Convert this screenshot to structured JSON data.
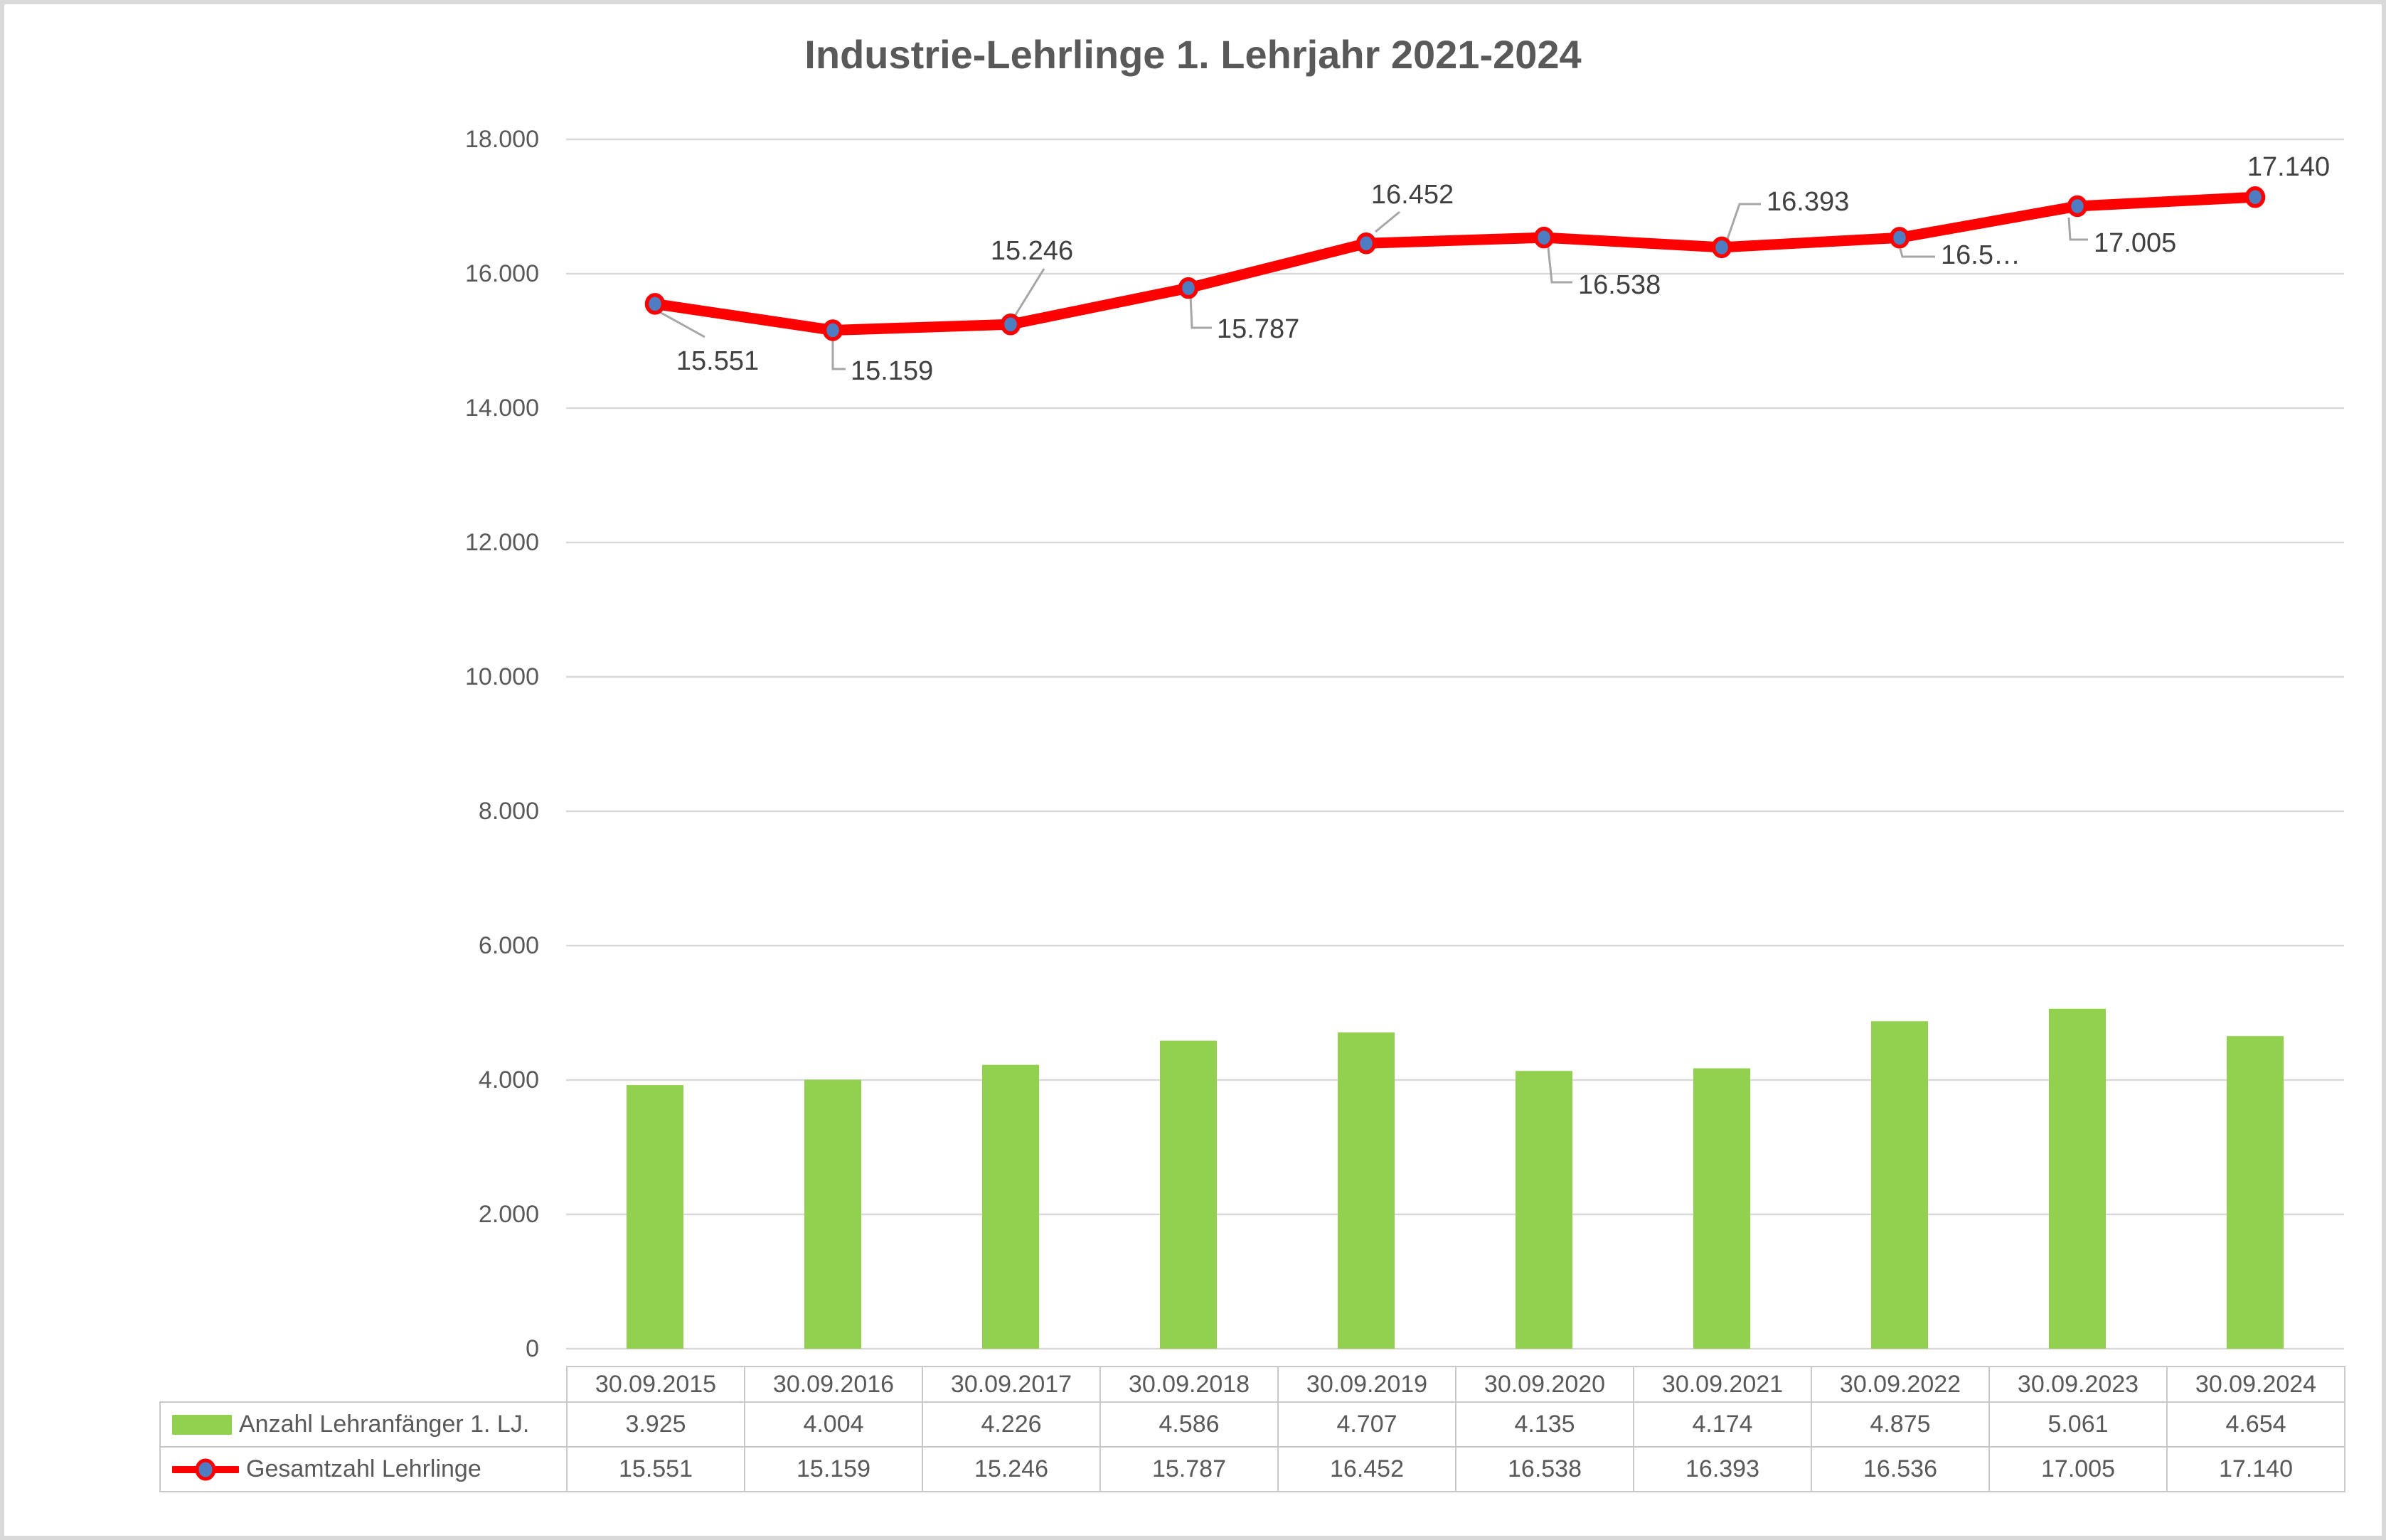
{
  "window": {
    "background": "#FFFFFF",
    "border_color": "#D9D9D9"
  },
  "title": "Industrie-Lehrlinge 1. Lehrjahr 2021-2024",
  "title_color": "#595959",
  "chart_data": {
    "type": "combo-bar-line",
    "categories": [
      "30.09.2015",
      "30.09.2016",
      "30.09.2017",
      "30.09.2018",
      "30.09.2019",
      "30.09.2020",
      "30.09.2021",
      "30.09.2022",
      "30.09.2023",
      "30.09.2024"
    ],
    "series": [
      {
        "name": "Anzahl Lehranfänger 1. LJ.",
        "chart_type": "bar",
        "color": "#92D050",
        "values": [
          3925,
          4004,
          4226,
          4586,
          4707,
          4135,
          4174,
          4875,
          5061,
          4654
        ],
        "values_formatted": [
          "3.925",
          "4.004",
          "4.226",
          "4.586",
          "4.707",
          "4.135",
          "4.174",
          "4.875",
          "5.061",
          "4.654"
        ]
      },
      {
        "name": "Gesamtzahl Lehrlinge",
        "chart_type": "line",
        "color": "#FF0000",
        "marker_fill": "#4E7DC2",
        "marker_outline": "#FF0000",
        "values": [
          15551,
          15159,
          15246,
          15787,
          16452,
          16538,
          16393,
          16536,
          17005,
          17140
        ],
        "values_formatted": [
          "15.551",
          "15.159",
          "15.246",
          "15.787",
          "16.452",
          "16.538",
          "16.393",
          "16.536",
          "17.005",
          "17.140"
        ],
        "point_labels": [
          "15.551",
          "15.159",
          "15.246",
          "15.787",
          "16.452",
          "16.538",
          "16.393",
          "16.5…",
          "17.005",
          "17.140"
        ]
      }
    ],
    "ylim": [
      0,
      18000
    ],
    "ytick_step": 2000,
    "ytick_labels": [
      "0",
      "2.000",
      "4.000",
      "6.000",
      "8.000",
      "10.000",
      "12.000",
      "14.000",
      "16.000",
      "18.000"
    ],
    "grid": true,
    "gridline_color": "#D9D9D9",
    "axis_text_color": "#595959",
    "data_label_color": "#404040",
    "leader_line_color": "#A6A6A6",
    "legend_position": "bottom-data-table"
  }
}
